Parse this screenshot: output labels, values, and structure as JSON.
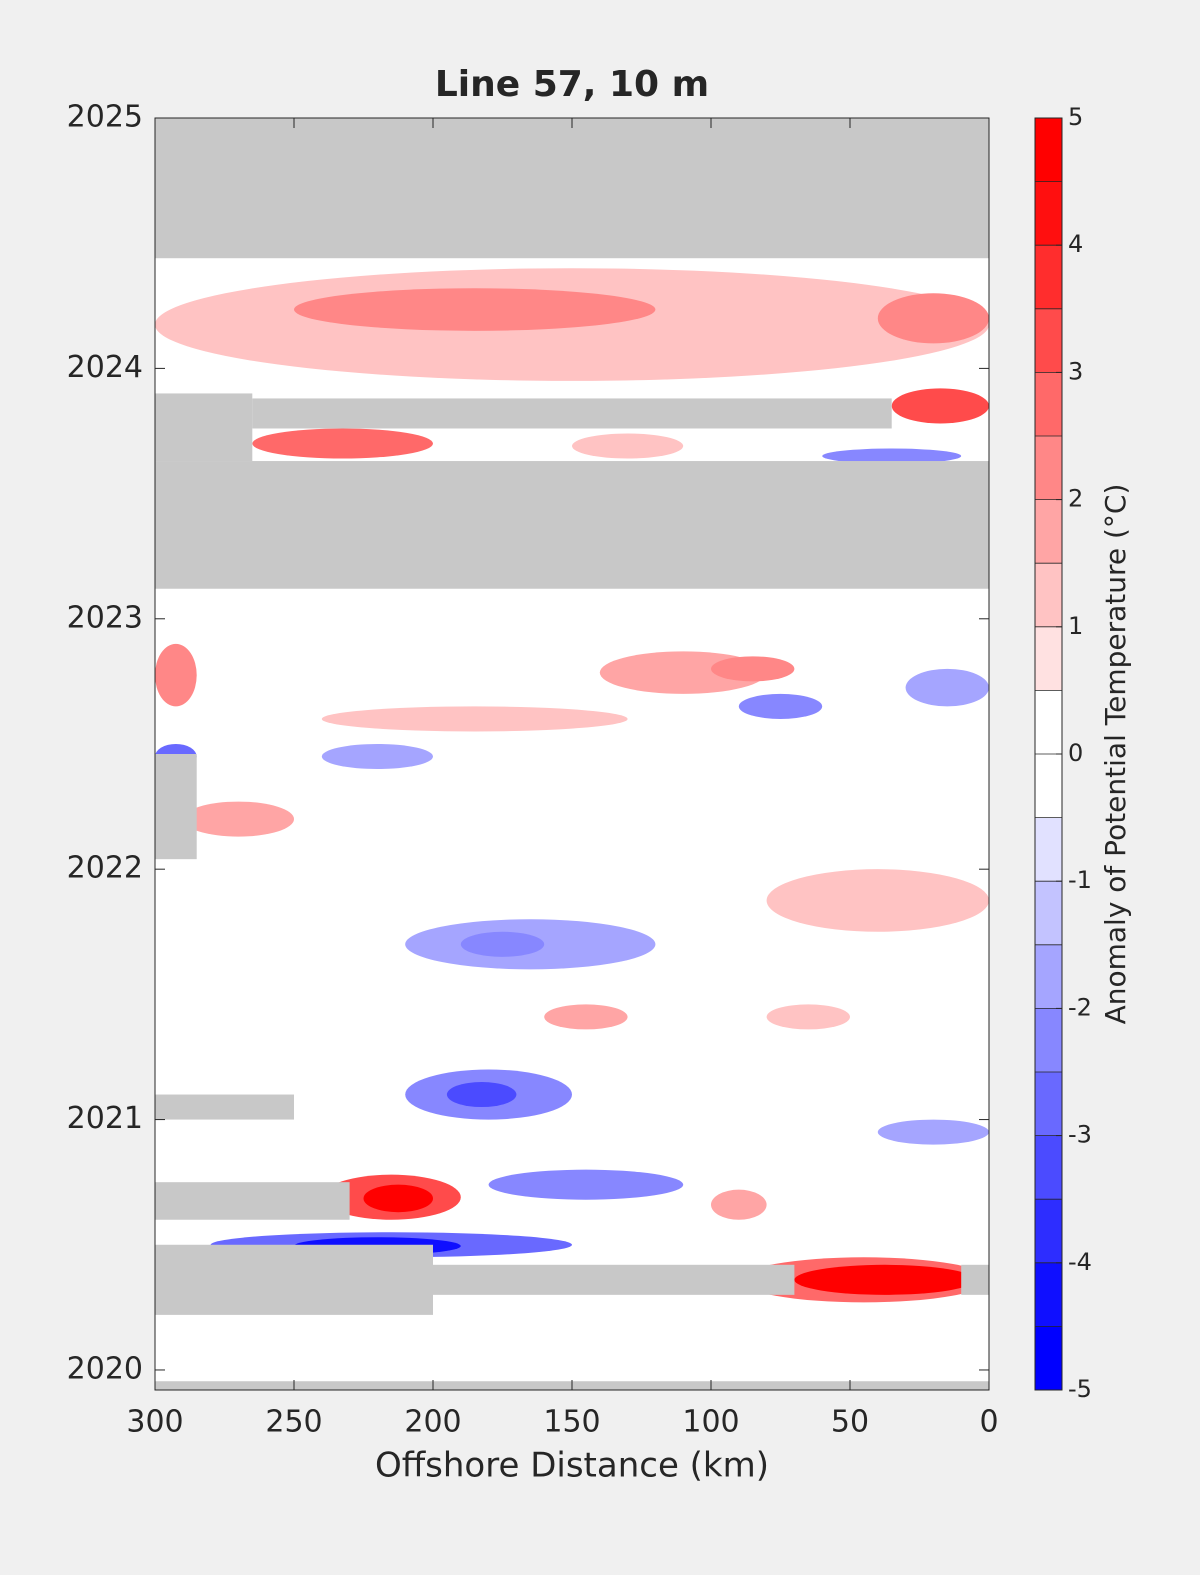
{
  "chart_data": {
    "type": "contour",
    "title": "Line 57, 10 m",
    "x_label": "Offshore Distance (km)",
    "colorbar_label": "Anomaly of Potential Temperature (°C)",
    "xlim": [
      300,
      0
    ],
    "xticks": [
      300,
      250,
      200,
      150,
      100,
      50,
      0
    ],
    "ylim": [
      2019.92,
      2025
    ],
    "yticks": [
      2020,
      2021,
      2022,
      2023,
      2024,
      2025
    ],
    "levels": [
      -5,
      -4.5,
      -4,
      -3.5,
      -3,
      -2.5,
      -2,
      -1.5,
      -1,
      -0.5,
      0,
      0.5,
      1,
      1.5,
      2,
      2.5,
      3,
      3.5,
      4,
      4.5,
      5
    ],
    "colorbar_ticks": [
      -5,
      -4,
      -3,
      -2,
      -1,
      0,
      1,
      2,
      3,
      4,
      5
    ],
    "colormap": [
      "#0000ff",
      "#ffffff",
      "#ff0000"
    ],
    "mask_color": "#c8c8c8",
    "features": [
      {
        "x": [
          300,
          0
        ],
        "y": [
          2023.95,
          2024.4
        ],
        "value": 1.2
      },
      {
        "x": [
          250,
          120
        ],
        "y": [
          2024.15,
          2024.32
        ],
        "value": 2.2
      },
      {
        "x": [
          40,
          0
        ],
        "y": [
          2024.1,
          2024.3
        ],
        "value": 2.5
      },
      {
        "x": [
          35,
          0
        ],
        "y": [
          2023.78,
          2023.92
        ],
        "value": 3.5
      },
      {
        "x": [
          265,
          200
        ],
        "y": [
          2023.64,
          2023.76
        ],
        "value": 3
      },
      {
        "x": [
          150,
          110
        ],
        "y": [
          2023.64,
          2023.74
        ],
        "value": 1.5
      },
      {
        "x": [
          60,
          10
        ],
        "y": [
          2023.62,
          2023.68
        ],
        "value": -2
      },
      {
        "x": [
          300,
          285
        ],
        "y": [
          2022.65,
          2022.9
        ],
        "value": 2.5
      },
      {
        "x": [
          240,
          130
        ],
        "y": [
          2022.55,
          2022.65
        ],
        "value": 1.2
      },
      {
        "x": [
          140,
          80
        ],
        "y": [
          2022.7,
          2022.87
        ],
        "value": 2
      },
      {
        "x": [
          100,
          70
        ],
        "y": [
          2022.75,
          2022.85
        ],
        "value": 2.5
      },
      {
        "x": [
          90,
          60
        ],
        "y": [
          2022.6,
          2022.7
        ],
        "value": -2
      },
      {
        "x": [
          30,
          0
        ],
        "y": [
          2022.65,
          2022.8
        ],
        "value": -1.5
      },
      {
        "x": [
          300,
          285
        ],
        "y": [
          2022.4,
          2022.5
        ],
        "value": -2.5
      },
      {
        "x": [
          240,
          200
        ],
        "y": [
          2022.4,
          2022.5
        ],
        "value": -1.5
      },
      {
        "x": [
          290,
          250
        ],
        "y": [
          2022.13,
          2022.27
        ],
        "value": 1.8
      },
      {
        "x": [
          210,
          120
        ],
        "y": [
          2021.6,
          2021.8
        ],
        "value": -1.5
      },
      {
        "x": [
          190,
          160
        ],
        "y": [
          2021.65,
          2021.75
        ],
        "value": -2
      },
      {
        "x": [
          80,
          0
        ],
        "y": [
          2021.75,
          2022
        ],
        "value": 1.2
      },
      {
        "x": [
          160,
          130
        ],
        "y": [
          2021.36,
          2021.46
        ],
        "value": 1.8
      },
      {
        "x": [
          80,
          50
        ],
        "y": [
          2021.36,
          2021.46
        ],
        "value": 1.5
      },
      {
        "x": [
          210,
          150
        ],
        "y": [
          2021.0,
          2021.2
        ],
        "value": -2
      },
      {
        "x": [
          195,
          170
        ],
        "y": [
          2021.05,
          2021.15
        ],
        "value": -3
      },
      {
        "x": [
          240,
          190
        ],
        "y": [
          2020.6,
          2020.78
        ],
        "value": 3.5
      },
      {
        "x": [
          225,
          200
        ],
        "y": [
          2020.63,
          2020.74
        ],
        "value": 4.7
      },
      {
        "x": [
          180,
          110
        ],
        "y": [
          2020.68,
          2020.8
        ],
        "value": -2
      },
      {
        "x": [
          100,
          80
        ],
        "y": [
          2020.6,
          2020.72
        ],
        "value": 2
      },
      {
        "x": [
          40,
          0
        ],
        "y": [
          2020.9,
          2021.0
        ],
        "value": -1.5
      },
      {
        "x": [
          280,
          150
        ],
        "y": [
          2020.45,
          2020.55
        ],
        "value": -2.5
      },
      {
        "x": [
          250,
          190
        ],
        "y": [
          2020.46,
          2020.53
        ],
        "value": -4.2
      },
      {
        "x": [
          90,
          0
        ],
        "y": [
          2020.27,
          2020.45
        ],
        "value": 3
      },
      {
        "x": [
          70,
          5
        ],
        "y": [
          2020.3,
          2020.42
        ],
        "value": 4.7
      }
    ],
    "masked": [
      {
        "x": [
          300,
          0
        ],
        "y": [
          2024.44,
          2025
        ]
      },
      {
        "x": [
          300,
          0
        ],
        "y": [
          2023.12,
          2023.63
        ]
      },
      {
        "x": [
          300,
          265
        ],
        "y": [
          2023.63,
          2023.9
        ]
      },
      {
        "x": [
          265,
          35
        ],
        "y": [
          2023.76,
          2023.88
        ]
      },
      {
        "x": [
          300,
          285
        ],
        "y": [
          2022.04,
          2022.46
        ]
      },
      {
        "x": [
          300,
          250
        ],
        "y": [
          2021.0,
          2021.1
        ]
      },
      {
        "x": [
          300,
          230
        ],
        "y": [
          2020.6,
          2020.75
        ]
      },
      {
        "x": [
          300,
          200
        ],
        "y": [
          2020.22,
          2020.5
        ]
      },
      {
        "x": [
          200,
          70
        ],
        "y": [
          2020.3,
          2020.42
        ]
      },
      {
        "x": [
          10,
          0
        ],
        "y": [
          2020.3,
          2020.42
        ]
      },
      {
        "x": [
          300,
          0
        ],
        "y": [
          2019.92,
          2019.955
        ]
      }
    ]
  }
}
